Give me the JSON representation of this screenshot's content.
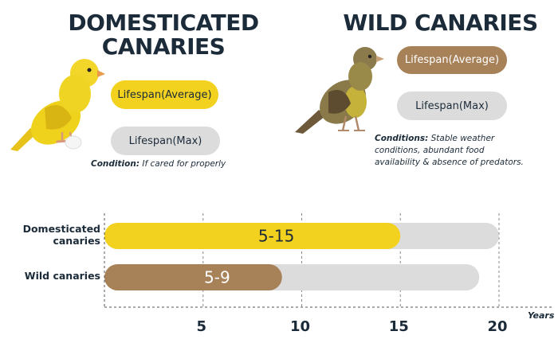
{
  "domestic": {
    "title_line1": "DOMESTICATED",
    "title_line2": "CANARIES",
    "pill_avg": "Lifespan(Average)",
    "pill_max": "Lifespan(Max)",
    "condition_label": "Condition:",
    "condition_text": " If cared for properly",
    "illustration": "yellow-canary-icon"
  },
  "wild": {
    "title": "WILD CANARIES",
    "pill_avg": "Lifespan(Average)",
    "pill_max": "Lifespan(Max)",
    "condition_label": "Conditions:",
    "condition_text_1": " Stable weather",
    "condition_text_2": "conditions, abundant food",
    "condition_text_3": "availability & absence of predators.",
    "illustration": "wild-canary-icon"
  },
  "colors": {
    "domestic_avg": "#f2d21e",
    "wild_avg": "#a78158",
    "max": "#dcdcdc",
    "text": "#1c2b39"
  },
  "chart_data": {
    "type": "bar",
    "orientation": "horizontal",
    "xlabel": "Years",
    "ylabel": "",
    "xticks": [
      5,
      10,
      15,
      20
    ],
    "xlim": [
      0,
      21
    ],
    "grid": "dashed vertical",
    "categories": [
      "Domesticated canaries",
      "Wild canaries"
    ],
    "series": [
      {
        "name": "Lifespan(Average)",
        "ranges": [
          [
            0,
            15
          ],
          [
            0,
            9
          ]
        ],
        "labels": [
          "5-15",
          "5-9"
        ]
      },
      {
        "name": "Lifespan(Max)",
        "values": [
          20,
          19
        ]
      }
    ]
  }
}
